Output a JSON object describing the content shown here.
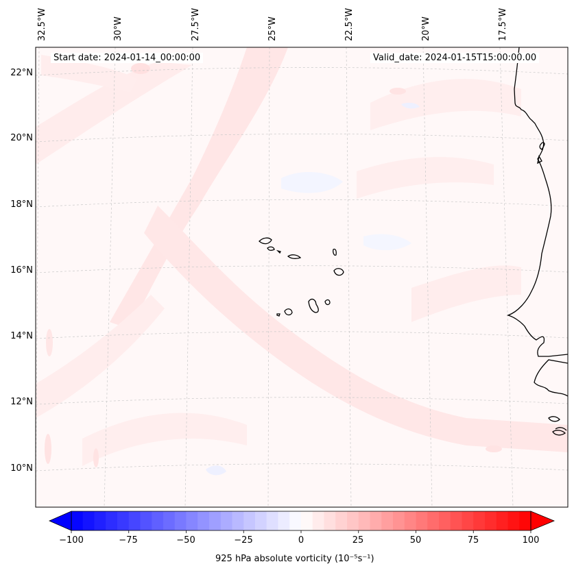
{
  "info": {
    "start_label": "Start date: 2024-01-14_00:00:00",
    "valid_label": "Valid_date: 2024-01-15T15:00:00.00"
  },
  "map": {
    "longitude_labels": [
      "32.5°W",
      "30°W",
      "27.5°W",
      "25°W",
      "22.5°W",
      "20°W",
      "17.5°W"
    ],
    "latitude_labels": [
      "22°N",
      "20°N",
      "18°N",
      "16°N",
      "14°N",
      "12°N",
      "10°N"
    ],
    "colors": {
      "land_coast": "#000000",
      "grid": "#c8c8c8",
      "weak_pos": "#fff2f2",
      "mid_pos": "#ffe3e3",
      "weak_neg": "#f2f4ff"
    }
  },
  "colorbar": {
    "tick_labels": [
      "−100",
      "−75",
      "−50",
      "−25",
      "0",
      "25",
      "50",
      "75",
      "100"
    ],
    "label": "925 hPa absolute vorticity (10⁻⁵s⁻¹)",
    "min": -100,
    "max": 100,
    "levels": 40,
    "cmap": "bwr"
  }
}
